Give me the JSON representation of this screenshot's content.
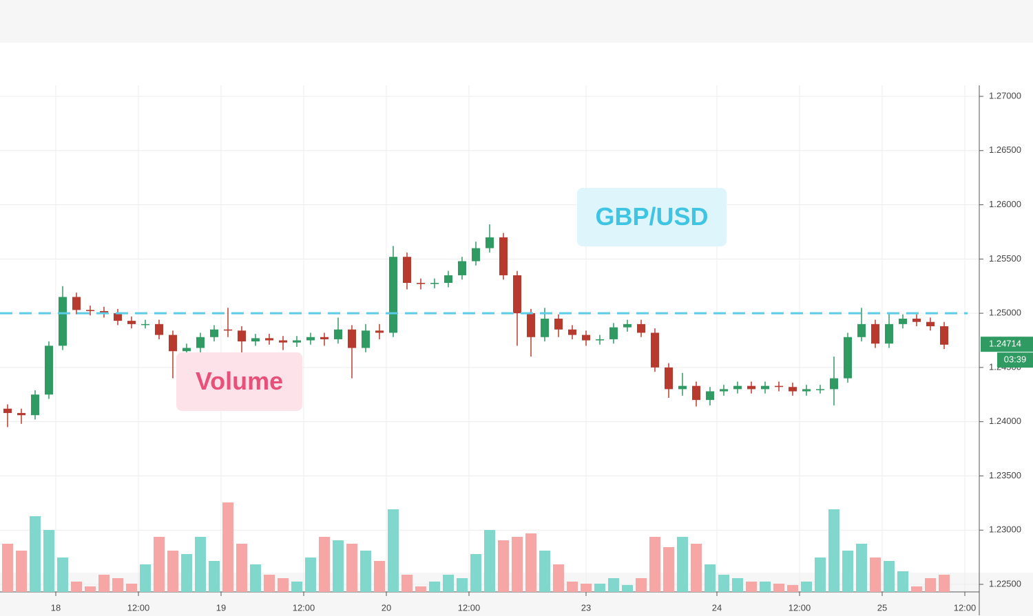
{
  "chart_data": {
    "type": "candlestick",
    "x": [
      -7,
      -5,
      -3,
      -1,
      1,
      3,
      5,
      7,
      9,
      11,
      13,
      15,
      17,
      19,
      21,
      23,
      25,
      27,
      29,
      31,
      33,
      35,
      37,
      39,
      41,
      43,
      45,
      47,
      49,
      51,
      53,
      55,
      57,
      59,
      61,
      63,
      65,
      67,
      69,
      71,
      73,
      75,
      77,
      79,
      81,
      83,
      85,
      87,
      89,
      91,
      93,
      95,
      97,
      99,
      101,
      103,
      105,
      107,
      109,
      111,
      113,
      115,
      117,
      119,
      121,
      123,
      125,
      127,
      129
    ],
    "open": [
      1.2412,
      1.2408,
      1.2406,
      1.2425,
      1.247,
      1.2515,
      1.2503,
      1.2502,
      1.25,
      1.2493,
      1.249,
      1.249,
      1.248,
      1.2465,
      1.2468,
      1.2478,
      1.2485,
      1.2484,
      1.2474,
      1.2477,
      1.2475,
      1.2473,
      1.2475,
      1.2478,
      1.2476,
      1.2485,
      1.2468,
      1.2484,
      1.2482,
      1.2552,
      1.2528,
      1.2527,
      1.2528,
      1.2535,
      1.2548,
      1.256,
      1.257,
      1.2535,
      1.25,
      1.2478,
      1.2495,
      1.2485,
      1.248,
      1.2475,
      1.2476,
      1.2487,
      1.249,
      1.2482,
      1.245,
      1.243,
      1.2433,
      1.242,
      1.2428,
      1.243,
      1.2433,
      1.243,
      1.2433,
      1.2432,
      1.2428,
      1.243,
      1.243,
      1.244,
      1.2478,
      1.249,
      1.2472,
      1.249,
      1.2495,
      1.2492,
      1.2488
    ],
    "high": [
      1.2416,
      1.2412,
      1.2429,
      1.2474,
      1.2525,
      1.2519,
      1.2507,
      1.2506,
      1.2504,
      1.2497,
      1.2494,
      1.2494,
      1.2484,
      1.2472,
      1.2482,
      1.2489,
      1.2505,
      1.2488,
      1.2481,
      1.2481,
      1.2479,
      1.2479,
      1.2482,
      1.2482,
      1.2496,
      1.2489,
      1.249,
      1.249,
      1.2562,
      1.2556,
      1.2532,
      1.2532,
      1.2539,
      1.2552,
      1.2566,
      1.2582,
      1.2574,
      1.2539,
      1.2504,
      1.2505,
      1.2499,
      1.2489,
      1.2484,
      1.248,
      1.2491,
      1.2494,
      1.2494,
      1.2486,
      1.2454,
      1.2445,
      1.2437,
      1.2432,
      1.2434,
      1.2437,
      1.2437,
      1.2437,
      1.2437,
      1.2436,
      1.2434,
      1.2434,
      1.246,
      1.2482,
      1.2505,
      1.2494,
      1.25,
      1.2499,
      1.2499,
      1.2496,
      1.2492
    ],
    "low": [
      1.2395,
      1.2398,
      1.2402,
      1.2421,
      1.2466,
      1.2499,
      1.2498,
      1.2496,
      1.2489,
      1.2486,
      1.2486,
      1.2476,
      1.244,
      1.2455,
      1.2445,
      1.2474,
      1.2478,
      1.245,
      1.247,
      1.2471,
      1.2466,
      1.2469,
      1.2471,
      1.247,
      1.2472,
      1.244,
      1.2464,
      1.2476,
      1.2478,
      1.2522,
      1.2522,
      1.2523,
      1.2524,
      1.2531,
      1.2544,
      1.2556,
      1.2531,
      1.247,
      1.246,
      1.2474,
      1.2478,
      1.2476,
      1.247,
      1.2471,
      1.2472,
      1.2483,
      1.2478,
      1.2446,
      1.2422,
      1.2424,
      1.2414,
      1.2415,
      1.2424,
      1.2426,
      1.2426,
      1.2426,
      1.2428,
      1.2424,
      1.2424,
      1.2426,
      1.2415,
      1.2436,
      1.2474,
      1.2468,
      1.2468,
      1.2486,
      1.2488,
      1.2484,
      1.2467
    ],
    "close": [
      1.2408,
      1.2406,
      1.2425,
      1.247,
      1.2515,
      1.2503,
      1.2502,
      1.25,
      1.2493,
      1.249,
      1.249,
      1.248,
      1.2465,
      1.2468,
      1.2478,
      1.2485,
      1.2484,
      1.2474,
      1.2477,
      1.2475,
      1.2473,
      1.2475,
      1.2478,
      1.2476,
      1.2485,
      1.2468,
      1.2484,
      1.2482,
      1.2552,
      1.2528,
      1.2527,
      1.2528,
      1.2535,
      1.2548,
      1.256,
      1.257,
      1.2535,
      1.25,
      1.2478,
      1.2495,
      1.2485,
      1.248,
      1.2475,
      1.2476,
      1.2487,
      1.249,
      1.2482,
      1.245,
      1.243,
      1.2433,
      1.242,
      1.2428,
      1.243,
      1.2433,
      1.243,
      1.2433,
      1.2432,
      1.2428,
      1.243,
      1.243,
      1.244,
      1.2478,
      1.249,
      1.2472,
      1.249,
      1.2495,
      1.2492,
      1.2488,
      1.2471
    ],
    "volume": [
      70,
      60,
      110,
      90,
      50,
      15,
      8,
      25,
      20,
      12,
      40,
      80,
      60,
      55,
      80,
      45,
      130,
      70,
      40,
      25,
      20,
      15,
      50,
      80,
      75,
      70,
      60,
      45,
      120,
      25,
      8,
      15,
      25,
      20,
      55,
      90,
      75,
      80,
      85,
      60,
      40,
      15,
      12,
      12,
      20,
      10,
      20,
      80,
      65,
      80,
      70,
      40,
      25,
      20,
      15,
      15,
      12,
      10,
      15,
      50,
      120,
      60,
      70,
      50,
      45,
      30,
      8,
      20,
      25
    ],
    "volume_lim": [
      0,
      220
    ],
    "up_color": "#2f9a62",
    "down_color": "#b83a2e",
    "volume_up_color": "#7fd8cb",
    "volume_down_color": "#f6a7a5",
    "xlim": [
      -8.1,
      134.1
    ],
    "xticks": [
      {
        "value": 0,
        "label": "18"
      },
      {
        "value": 12,
        "label": "12:00"
      },
      {
        "value": 24,
        "label": "19"
      },
      {
        "value": 36,
        "label": "12:00"
      },
      {
        "value": 48,
        "label": "20"
      },
      {
        "value": 60,
        "label": "12:00"
      },
      {
        "value": 77,
        "label": "23"
      },
      {
        "value": 96,
        "label": "24"
      },
      {
        "value": 108,
        "label": "12:00"
      },
      {
        "value": 120,
        "label": "25"
      },
      {
        "value": 132,
        "label": "12:00"
      }
    ],
    "ylim": [
      1.225,
      1.27
    ],
    "yticks": [
      {
        "value": 1.225,
        "label": "1.22500"
      },
      {
        "value": 1.23,
        "label": "1.23000"
      },
      {
        "value": 1.235,
        "label": "1.23500"
      },
      {
        "value": 1.24,
        "label": "1.24000"
      },
      {
        "value": 1.245,
        "label": "1.24500"
      },
      {
        "value": 1.25,
        "label": "1.25000"
      },
      {
        "value": 1.255,
        "label": "1.25500"
      },
      {
        "value": 1.26,
        "label": "1.26000"
      },
      {
        "value": 1.265,
        "label": "1.26500"
      },
      {
        "value": 1.27,
        "label": "1.27000"
      }
    ],
    "grid": true,
    "reference_line": {
      "value": 1.25,
      "color": "#5ccbe6"
    },
    "last_price": {
      "value": 1.24714,
      "label": "1.24714"
    },
    "countdown": "03:39",
    "annotations": [
      {
        "text": "GBP/USD",
        "color": "#3fc4e4",
        "background": "#def6fb"
      },
      {
        "text": "Volume",
        "color": "#e8507a",
        "background": "#fde3e9"
      }
    ]
  }
}
